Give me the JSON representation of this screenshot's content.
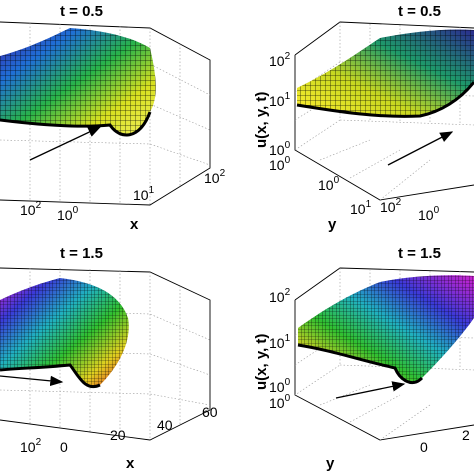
{
  "chart_data": [
    {
      "type": "surface",
      "title": "t = 0.5",
      "xlabel": "x",
      "ylabel": "",
      "zlabel": "",
      "x_ticks": [
        "10",
        "10",
        "10"
      ],
      "x_tick_exponents": [
        "0",
        "1",
        "2"
      ],
      "y_ticks": [
        "10"
      ],
      "y_tick_exponents": [
        "2"
      ],
      "scale": "log"
    },
    {
      "type": "surface",
      "title": "t = 0.5",
      "xlabel": "y",
      "ylabel": "",
      "zlabel": "u(x, y, t)",
      "x_ticks": [
        "10",
        "10",
        "10"
      ],
      "x_tick_exponents": [
        "0",
        "1",
        "2"
      ],
      "z_ticks": [
        "10",
        "10",
        "10"
      ],
      "z_tick_exponents": [
        "2",
        "1",
        "0"
      ],
      "z_values": [
        100,
        10,
        1
      ],
      "extra_ticks": [
        "10"
      ],
      "extra_tick_exponents": [
        "0"
      ],
      "scale": "log"
    },
    {
      "type": "surface",
      "title": "t = 1.5",
      "xlabel": "x",
      "ylabel": "",
      "zlabel": "",
      "x_ticks": [
        "0",
        "20",
        "40",
        "60"
      ],
      "x_values": [
        0,
        20,
        40,
        60
      ],
      "y_ticks": [
        "10"
      ],
      "y_tick_exponents": [
        "2"
      ],
      "scale": "linear-x"
    },
    {
      "type": "surface",
      "title": "t = 1.5",
      "xlabel": "y",
      "ylabel": "",
      "zlabel": "u(x, y, t)",
      "x_ticks": [
        "0",
        "2"
      ],
      "x_values": [
        0,
        2
      ],
      "z_ticks": [
        "10",
        "10",
        "10"
      ],
      "z_tick_exponents": [
        "2",
        "1",
        "0"
      ],
      "z_values": [
        100,
        10,
        1
      ],
      "extra_ticks": [
        "10"
      ],
      "extra_tick_exponents": [
        "0"
      ],
      "scale": "log"
    }
  ]
}
